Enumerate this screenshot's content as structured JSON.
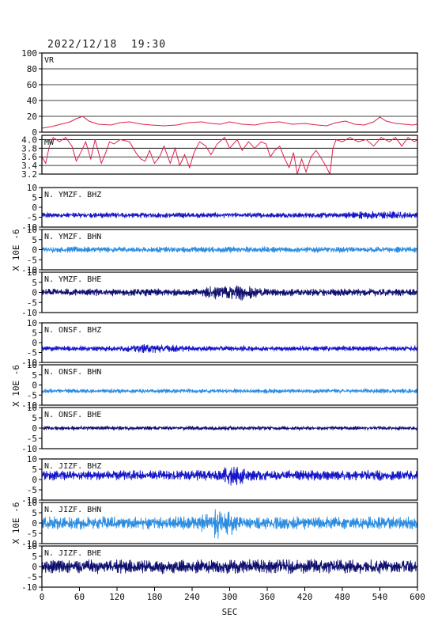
{
  "header": {
    "timestamp": "2022/12/18  19:30"
  },
  "chart_data": {
    "type": "line",
    "x_range": [
      0,
      600
    ],
    "x_ticks": [
      0,
      60,
      120,
      180,
      240,
      300,
      360,
      420,
      480,
      540,
      600
    ],
    "xlabel": "SEC",
    "ylabel": "X 10E -6",
    "panels": [
      {
        "id": "vr",
        "label": "VR",
        "color": "#e0204a",
        "ylim": [
          0,
          100
        ],
        "ticks": [
          0,
          20,
          40,
          60,
          80,
          100
        ],
        "grid": true,
        "series": [
          [
            0,
            5
          ],
          [
            15,
            7
          ],
          [
            30,
            10
          ],
          [
            45,
            13
          ],
          [
            55,
            17
          ],
          [
            65,
            20
          ],
          [
            75,
            14
          ],
          [
            90,
            10
          ],
          [
            110,
            9
          ],
          [
            125,
            12
          ],
          [
            140,
            13
          ],
          [
            160,
            10
          ],
          [
            175,
            9
          ],
          [
            195,
            8
          ],
          [
            215,
            9
          ],
          [
            235,
            12
          ],
          [
            255,
            13
          ],
          [
            270,
            11
          ],
          [
            285,
            10
          ],
          [
            300,
            13
          ],
          [
            320,
            10
          ],
          [
            340,
            9
          ],
          [
            360,
            12
          ],
          [
            380,
            13
          ],
          [
            400,
            10
          ],
          [
            420,
            11
          ],
          [
            440,
            9
          ],
          [
            455,
            8
          ],
          [
            470,
            12
          ],
          [
            485,
            14
          ],
          [
            500,
            10
          ],
          [
            515,
            9
          ],
          [
            530,
            13
          ],
          [
            540,
            19
          ],
          [
            550,
            14
          ],
          [
            565,
            11
          ],
          [
            580,
            10
          ],
          [
            592,
            9
          ],
          [
            600,
            10
          ]
        ]
      },
      {
        "id": "mw",
        "label": "MW",
        "color": "#e0204a",
        "ylim": [
          3.2,
          4.1
        ],
        "ticks": [
          3.2,
          3.4,
          3.6,
          3.8,
          4.0
        ],
        "tick_labels": [
          "3.2",
          "3.4",
          "3.6",
          "3.8",
          "4.0"
        ],
        "grid": true,
        "series": [
          [
            0,
            3.6
          ],
          [
            6,
            3.45
          ],
          [
            12,
            3.85
          ],
          [
            18,
            4.05
          ],
          [
            28,
            3.95
          ],
          [
            38,
            4.05
          ],
          [
            48,
            3.85
          ],
          [
            55,
            3.5
          ],
          [
            62,
            3.7
          ],
          [
            70,
            3.95
          ],
          [
            78,
            3.55
          ],
          [
            85,
            4.0
          ],
          [
            95,
            3.45
          ],
          [
            102,
            3.7
          ],
          [
            108,
            3.95
          ],
          [
            115,
            3.9
          ],
          [
            125,
            4.0
          ],
          [
            140,
            3.95
          ],
          [
            150,
            3.7
          ],
          [
            158,
            3.55
          ],
          [
            165,
            3.5
          ],
          [
            172,
            3.75
          ],
          [
            180,
            3.45
          ],
          [
            188,
            3.6
          ],
          [
            195,
            3.85
          ],
          [
            205,
            3.45
          ],
          [
            213,
            3.8
          ],
          [
            220,
            3.4
          ],
          [
            228,
            3.65
          ],
          [
            236,
            3.35
          ],
          [
            243,
            3.7
          ],
          [
            252,
            3.95
          ],
          [
            262,
            3.85
          ],
          [
            270,
            3.65
          ],
          [
            280,
            3.9
          ],
          [
            292,
            4.05
          ],
          [
            300,
            3.8
          ],
          [
            312,
            4.0
          ],
          [
            320,
            3.75
          ],
          [
            330,
            3.95
          ],
          [
            340,
            3.8
          ],
          [
            350,
            3.95
          ],
          [
            358,
            3.9
          ],
          [
            365,
            3.6
          ],
          [
            372,
            3.75
          ],
          [
            380,
            3.85
          ],
          [
            388,
            3.55
          ],
          [
            395,
            3.35
          ],
          [
            402,
            3.7
          ],
          [
            408,
            3.2
          ],
          [
            415,
            3.55
          ],
          [
            422,
            3.25
          ],
          [
            430,
            3.6
          ],
          [
            438,
            3.75
          ],
          [
            447,
            3.55
          ],
          [
            455,
            3.35
          ],
          [
            460,
            3.2
          ],
          [
            465,
            3.8
          ],
          [
            470,
            4.0
          ],
          [
            480,
            3.95
          ],
          [
            492,
            4.05
          ],
          [
            505,
            3.95
          ],
          [
            518,
            4.0
          ],
          [
            530,
            3.85
          ],
          [
            542,
            4.05
          ],
          [
            555,
            3.95
          ],
          [
            565,
            4.05
          ],
          [
            575,
            3.85
          ],
          [
            585,
            4.05
          ],
          [
            595,
            3.95
          ],
          [
            600,
            4.0
          ]
        ]
      },
      {
        "id": "ymzf-bhz",
        "label": "N. YMZF. BHZ",
        "color": "#1414c8",
        "ylim": [
          -10,
          10
        ],
        "ticks": [
          -10,
          -5,
          0,
          5,
          10
        ],
        "offset": -4,
        "amplitude": 1.0,
        "bursts": [
          [
            470,
            600,
            0.6
          ]
        ]
      },
      {
        "id": "ymzf-bhn",
        "label": "N. YMZF. BHN",
        "color": "#2a8ce0",
        "ylim": [
          -10,
          10
        ],
        "ticks": [
          -10,
          -5,
          0,
          5,
          10
        ],
        "offset": 0,
        "amplitude": 1.1,
        "bursts": []
      },
      {
        "id": "ymzf-bhe",
        "label": "N. YMZF. BHE",
        "color": "#0d0d6e",
        "ylim": [
          -10,
          10
        ],
        "ticks": [
          -10,
          -5,
          0,
          5,
          10
        ],
        "offset": 0,
        "amplitude": 1.4,
        "bursts": [
          [
            250,
            360,
            1.2
          ]
        ]
      },
      {
        "id": "onsf-bhz",
        "label": "N. ONSF. BHZ",
        "color": "#1414c8",
        "ylim": [
          -10,
          10
        ],
        "ticks": [
          -10,
          -5,
          0,
          5,
          10
        ],
        "offset": -3,
        "amplitude": 1.0,
        "bursts": [
          [
            120,
            240,
            0.7
          ]
        ]
      },
      {
        "id": "onsf-bhn",
        "label": "N. ONSF. BHN",
        "color": "#2a8ce0",
        "ylim": [
          -10,
          10
        ],
        "ticks": [
          -10,
          -5,
          0,
          5,
          10
        ],
        "offset": -3,
        "amplitude": 0.8,
        "bursts": []
      },
      {
        "id": "onsf-bhe",
        "label": "N. ONSF. BHE",
        "color": "#0d0d6e",
        "ylim": [
          -10,
          10
        ],
        "ticks": [
          -10,
          -5,
          0,
          5,
          10
        ],
        "offset": 0,
        "amplitude": 0.7,
        "bursts": []
      },
      {
        "id": "jizf-bhz",
        "label": "N. JIZF. BHZ",
        "color": "#1414c8",
        "ylim": [
          -10,
          10
        ],
        "ticks": [
          -10,
          -5,
          0,
          5,
          10
        ],
        "offset": 2,
        "amplitude": 1.9,
        "bursts": [
          [
            280,
            330,
            1.0
          ]
        ]
      },
      {
        "id": "jizf-bhn",
        "label": "N. JIZF. BHN",
        "color": "#2a8ce0",
        "ylim": [
          -10,
          10
        ],
        "ticks": [
          -10,
          -5,
          0,
          5,
          10
        ],
        "offset": 0,
        "amplitude": 2.4,
        "bursts": [
          [
            250,
            320,
            1.3
          ]
        ]
      },
      {
        "id": "jizf-bhe",
        "label": "N. JIZF. BHE",
        "color": "#0d0d6e",
        "ylim": [
          -10,
          10
        ],
        "ticks": [
          -10,
          -5,
          0,
          5,
          10
        ],
        "offset": 0,
        "amplitude": 2.6,
        "bursts": []
      }
    ]
  }
}
